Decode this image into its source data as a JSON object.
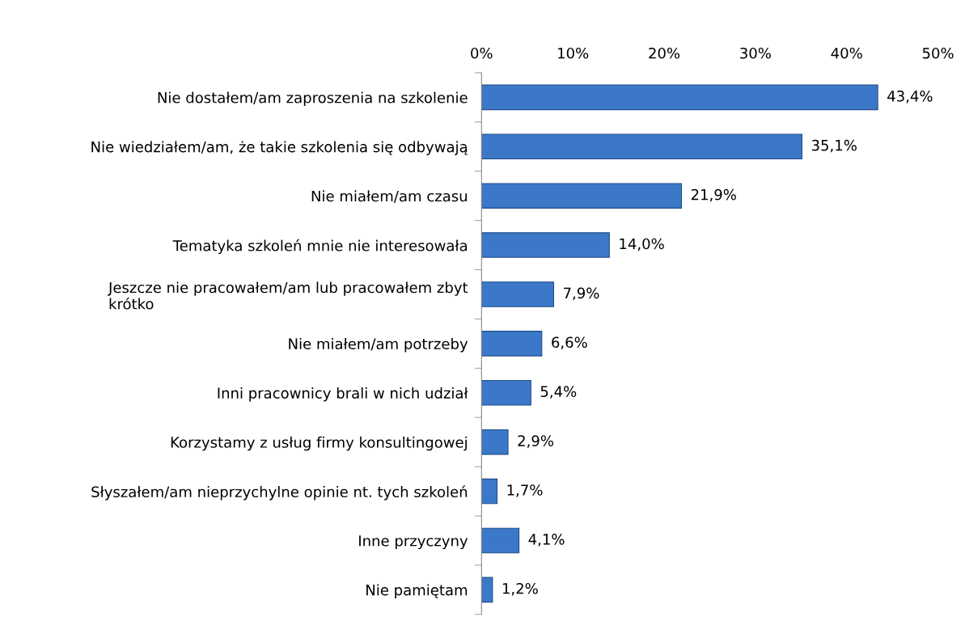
{
  "chart_data": {
    "type": "bar",
    "orientation": "horizontal",
    "categories": [
      "Nie dostałem/am zaproszenia na szkolenie",
      "Nie wiedziałem/am, że takie szkolenia się odbywają",
      "Nie miałem/am czasu",
      "Tematyka szkoleń mnie nie interesowała",
      "Jeszcze nie pracowałem/am lub pracowałem zbyt\nkrótko",
      "Nie miałem/am potrzeby",
      "Inni pracownicy brali w nich udział",
      "Korzystamy z usług firmy konsultingowej",
      "Słyszałem/am nieprzychylne opinie nt. tych szkoleń",
      "Inne przyczyny",
      "Nie pamiętam"
    ],
    "values": [
      43.4,
      35.1,
      21.9,
      14.0,
      7.9,
      6.6,
      5.4,
      2.9,
      1.7,
      4.1,
      1.2
    ],
    "value_labels": [
      "43,4%",
      "35,1%",
      "21,9%",
      "14,0%",
      "7,9%",
      "6,6%",
      "5,4%",
      "2,9%",
      "1,7%",
      "4,1%",
      "1,2%"
    ],
    "color": "#3c78c8",
    "xlim": [
      0,
      50
    ],
    "xticks": [
      {
        "value": 0,
        "label": "0%"
      },
      {
        "value": 10,
        "label": "10%"
      },
      {
        "value": 20,
        "label": "20%"
      },
      {
        "value": 30,
        "label": "30%"
      },
      {
        "value": 40,
        "label": "40%"
      },
      {
        "value": 50,
        "label": "50%"
      }
    ],
    "grid": false,
    "legend": false
  }
}
